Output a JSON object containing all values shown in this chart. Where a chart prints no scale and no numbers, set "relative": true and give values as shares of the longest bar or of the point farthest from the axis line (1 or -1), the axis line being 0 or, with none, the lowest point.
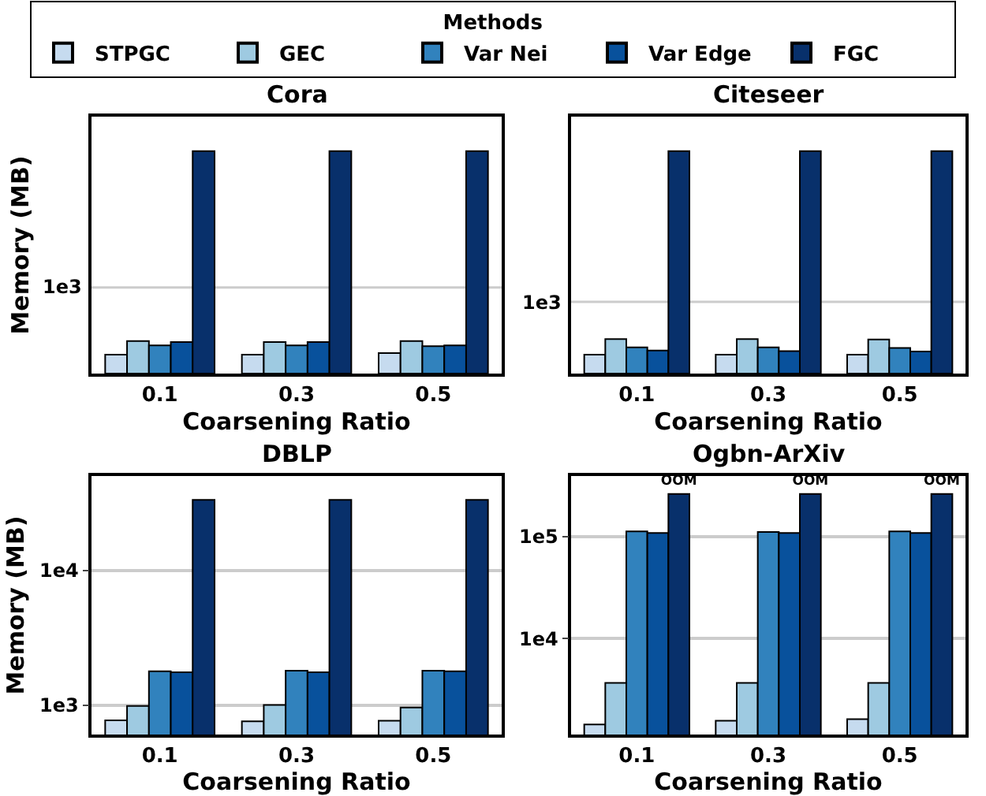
{
  "chart_data": [
    {
      "type": "bar",
      "title": "Cora",
      "xlabel": "Coarsening Ratio",
      "ylabel": "Memory (MB)",
      "legend_title": "Methods",
      "legend": "top",
      "relative": true,
      "categories": [
        "0.1",
        "0.3",
        "0.5"
      ],
      "ref_lines": [
        {
          "axis": "y",
          "value": 0.387,
          "label": "1e3"
        }
      ],
      "series": [
        {
          "name": "STPGC",
          "color": "#c6dbef",
          "values": [
            0.085,
            0.085,
            0.092
          ]
        },
        {
          "name": "GEC",
          "color": "#9ecae1",
          "values": [
            0.146,
            0.142,
            0.146
          ]
        },
        {
          "name": "Var Nei",
          "color": "#3182bd",
          "values": [
            0.127,
            0.127,
            0.123
          ]
        },
        {
          "name": "Var Edge",
          "color": "#08519c",
          "values": [
            0.142,
            0.142,
            0.127
          ]
        },
        {
          "name": "FGC",
          "color": "#08306b",
          "values": [
            1,
            1,
            1
          ]
        }
      ]
    },
    {
      "type": "bar",
      "title": "Citeseer",
      "xlabel": "Coarsening Ratio",
      "relative": true,
      "categories": [
        "0.1",
        "0.3",
        "0.5"
      ],
      "ref_lines": [
        {
          "axis": "y",
          "value": 0.322,
          "label": "1e3"
        }
      ],
      "series": [
        {
          "color": "#c6dbef",
          "values": [
            0.085,
            0.085,
            0.085
          ]
        },
        {
          "color": "#9ecae1",
          "values": [
            0.155,
            0.155,
            0.153
          ]
        },
        {
          "color": "#3182bd",
          "values": [
            0.118,
            0.118,
            0.115
          ]
        },
        {
          "color": "#08519c",
          "values": [
            0.104,
            0.101,
            0.099
          ]
        },
        {
          "color": "#08306b",
          "values": [
            1,
            1,
            1
          ]
        }
      ]
    },
    {
      "type": "bar",
      "title": "DBLP",
      "xlabel": "Coarsening Ratio",
      "ylabel": "Memory (MB)",
      "log": true,
      "grid": "y",
      "categories": [
        "0.1",
        "0.3",
        "0.5"
      ],
      "ylim": [
        603,
        50300
      ],
      "yticks": [
        {
          "value": 1000,
          "label": "1e3"
        },
        {
          "value": 10000,
          "label": "1e4"
        }
      ],
      "series": [
        {
          "color": "#c6dbef",
          "values": [
            769,
            756,
            763
          ]
        },
        {
          "color": "#9ecae1",
          "values": [
            982,
            1000,
            956
          ]
        },
        {
          "color": "#3182bd",
          "values": [
            1782,
            1798,
            1798
          ]
        },
        {
          "color": "#08519c",
          "values": [
            1750,
            1750,
            1782
          ]
        },
        {
          "color": "#08306b",
          "values": [
            33500,
            33500,
            33500
          ]
        }
      ]
    },
    {
      "type": "bar",
      "title": "Ogbn-ArXiv",
      "xlabel": "Coarsening Ratio",
      "log": true,
      "grid": "y",
      "categories": [
        "0.1",
        "0.3",
        "0.5"
      ],
      "ylim": [
        1140,
        394000
      ],
      "yticks": [
        {
          "value": 10000,
          "label": "1e4"
        },
        {
          "value": 100000,
          "label": "1e5"
        }
      ],
      "series": [
        {
          "color": "#c6dbef",
          "values": [
            1430,
            1555,
            1610
          ]
        },
        {
          "color": "#9ecae1",
          "values": [
            3670,
            3670,
            3670
          ]
        },
        {
          "color": "#3182bd",
          "values": [
            112700,
            111400,
            112700
          ]
        },
        {
          "color": "#08519c",
          "values": [
            108700,
            108700,
            108700
          ]
        },
        {
          "color": "#08306b",
          "values": [
            263000,
            263000,
            263000
          ],
          "value_labels": [
            "OOM",
            "OOM",
            "OOM"
          ]
        }
      ]
    }
  ]
}
